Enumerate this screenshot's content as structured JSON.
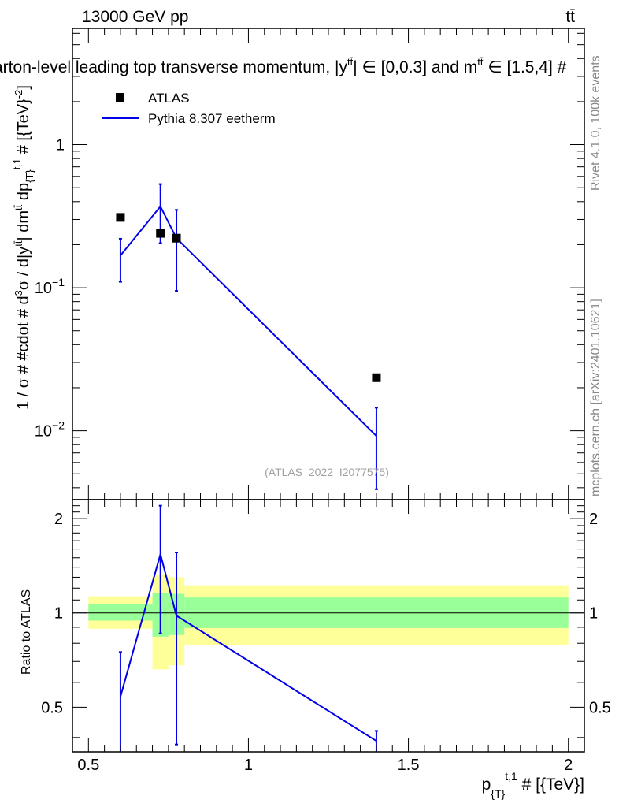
{
  "header": {
    "energy_label": "13000 GeV pp",
    "process_label": "tt̄",
    "title": "Parton-level leading top transverse momentum, |y",
    "title_sup1": "tt̄",
    "title_mid": "| ∈ [0,0.3] and m",
    "title_sup2": "tt̄",
    "title_end": " ∈ [1.5,4] #"
  },
  "side_labels": {
    "rivet": "Rivet 4.1.0,  100k events",
    "mcplots": "mcplots.cern.ch [arXiv:2401.10621]"
  },
  "watermark": "(ATLAS_2022_I2077575)",
  "axes": {
    "main_ylabel": "1 / σ # #cdot # d³σ / d|yᵗᵗ̄| dmᵗᵗ̄ dp_{T}^{t,1} # [{TeV}⁻²]",
    "ratio_ylabel": "Ratio to ATLAS",
    "xlabel": "p_{T}^{t,1} # [{TeV}]"
  },
  "legend": {
    "items": [
      {
        "label": "ATLAS",
        "kind": "marker"
      },
      {
        "label": "Pythia 8.307 eetherm",
        "kind": "line"
      }
    ]
  },
  "colors": {
    "data": "#000000",
    "mc": "#0000e6",
    "band_inner": "#99ff99",
    "band_outer": "#ffff99",
    "watermark": "#a0a0a0"
  },
  "chart_data": [
    {
      "type": "scatter",
      "panel": "main",
      "yscale": "log",
      "xlim": [
        0.45,
        2.05
      ],
      "ylim": [
        0.0033,
        6.5
      ],
      "y_tick_labels": [
        {
          "value": 1,
          "base": "1",
          "exp": ""
        },
        {
          "value": 0.1,
          "base": "10",
          "exp": "−1"
        },
        {
          "value": 0.01,
          "base": "10",
          "exp": "−2"
        }
      ],
      "series": [
        {
          "name": "ATLAS",
          "x": [
            0.6,
            0.725,
            0.775,
            1.4
          ],
          "y": [
            0.31,
            0.24,
            0.222,
            0.0235
          ]
        },
        {
          "name": "Pythia 8.307 eetherm",
          "x": [
            0.6,
            0.725,
            0.775,
            1.4
          ],
          "y": [
            0.168,
            0.37,
            0.222,
            0.0092
          ],
          "err_low": [
            0.11,
            0.205,
            0.095,
            0.0039
          ],
          "err_high": [
            0.22,
            0.53,
            0.35,
            0.0145
          ]
        }
      ]
    },
    {
      "type": "line",
      "panel": "ratio",
      "xlim": [
        0.45,
        2.05
      ],
      "ylim": [
        0.36,
        2.3
      ],
      "y_ticks": [
        0.5,
        1,
        2
      ],
      "y_tick_labels": [
        "0.5",
        "1",
        "2"
      ],
      "x_ticks": [
        0.5,
        1,
        1.5,
        2
      ],
      "x_tick_labels": [
        "0.5",
        "1",
        "1.5",
        "2"
      ],
      "reference_line": 1,
      "bands": [
        {
          "x0": 0.5,
          "x1": 0.7,
          "outer_lo": 0.89,
          "outer_hi": 1.13,
          "inner_lo": 0.945,
          "inner_hi": 1.065
        },
        {
          "x0": 0.7,
          "x1": 0.75,
          "outer_lo": 0.66,
          "outer_hi": 1.32,
          "inner_lo": 0.84,
          "inner_hi": 1.16
        },
        {
          "x0": 0.75,
          "x1": 0.8,
          "outer_lo": 0.68,
          "outer_hi": 1.3,
          "inner_lo": 0.85,
          "inner_hi": 1.15
        },
        {
          "x0": 0.8,
          "x1": 2.0,
          "outer_lo": 0.79,
          "outer_hi": 1.225,
          "inner_lo": 0.895,
          "inner_hi": 1.12
        }
      ],
      "series": [
        {
          "name": "Pythia 8.307 eetherm",
          "x": [
            0.6,
            0.725,
            0.775,
            1.4
          ],
          "y": [
            0.54,
            1.54,
            0.98,
            0.39
          ],
          "err_low": [
            0.3,
            0.86,
            0.38,
            0.3
          ],
          "err_high": [
            0.75,
            2.2,
            1.56,
            0.42
          ]
        }
      ]
    }
  ]
}
